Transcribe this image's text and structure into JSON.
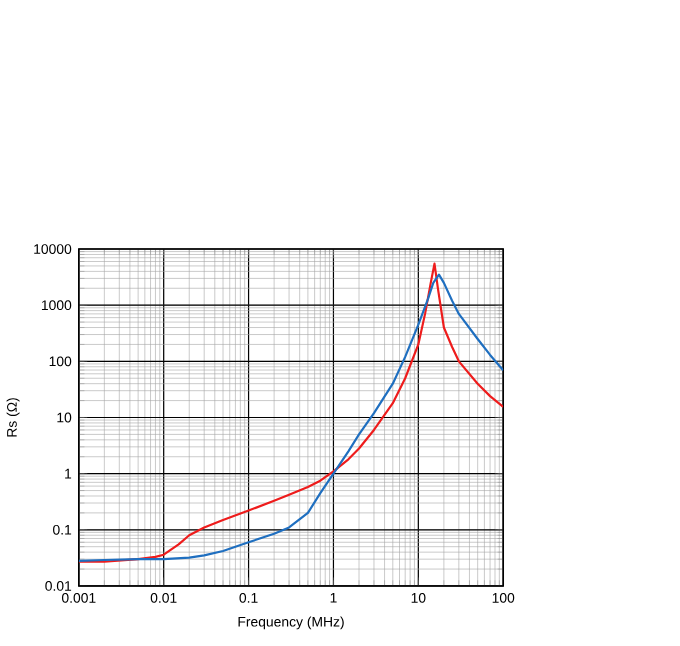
{
  "chart_data": {
    "type": "line",
    "xlabel": "Frequency (MHz)",
    "ylabel": "Rs (Ω)",
    "log": "xy",
    "grid": true,
    "marker": "none",
    "line_style": "solid",
    "xlim": [
      0.001,
      100
    ],
    "ylim": [
      0.01,
      10000
    ],
    "xticks": [
      0.001,
      0.01,
      0.1,
      1,
      10,
      100
    ],
    "yticks": [
      0.01,
      0.1,
      1,
      10,
      100,
      1000,
      10000
    ],
    "series": [
      {
        "color": "#ee1c1c",
        "x": [
          0.001,
          0.002,
          0.005,
          0.008,
          0.01,
          0.015,
          0.02,
          0.03,
          0.05,
          0.1,
          0.2,
          0.3,
          0.5,
          0.7,
          1,
          1.5,
          2,
          3,
          5,
          7,
          10,
          12,
          14,
          15.5,
          17,
          20,
          25,
          30,
          50,
          70,
          100
        ],
        "values": [
          0.027,
          0.027,
          0.03,
          0.033,
          0.036,
          0.055,
          0.08,
          0.11,
          0.15,
          0.22,
          0.33,
          0.42,
          0.58,
          0.75,
          1.1,
          1.8,
          2.8,
          6,
          18,
          50,
          200,
          700,
          2500,
          5500,
          2000,
          400,
          180,
          100,
          40,
          24,
          15.5
        ]
      },
      {
        "color": "#1f6fc0",
        "x": [
          0.001,
          0.002,
          0.005,
          0.01,
          0.02,
          0.03,
          0.05,
          0.1,
          0.2,
          0.3,
          0.5,
          0.7,
          1,
          1.5,
          2,
          3,
          5,
          7,
          10,
          13,
          15,
          17.5,
          20,
          25,
          30,
          50,
          70,
          100
        ],
        "values": [
          0.028,
          0.029,
          0.03,
          0.03,
          0.032,
          0.035,
          0.042,
          0.06,
          0.085,
          0.11,
          0.2,
          0.45,
          1,
          2.5,
          5,
          12,
          40,
          120,
          450,
          1300,
          2500,
          3500,
          2500,
          1200,
          700,
          250,
          130,
          69
        ]
      }
    ]
  }
}
